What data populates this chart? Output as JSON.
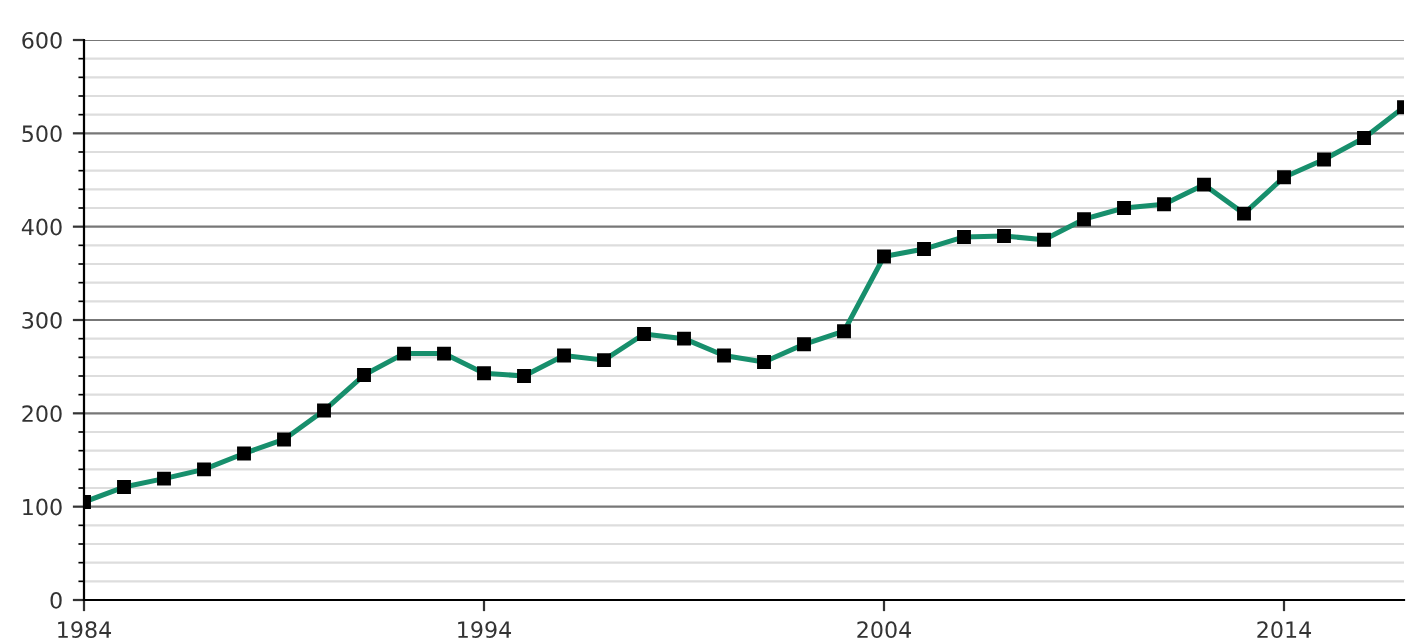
{
  "chart_data": {
    "type": "line",
    "x": [
      1984,
      1985,
      1986,
      1987,
      1988,
      1989,
      1990,
      1991,
      1992,
      1993,
      1994,
      1995,
      1996,
      1997,
      1998,
      1999,
      2000,
      2001,
      2002,
      2003,
      2004,
      2005,
      2006,
      2007,
      2008,
      2009,
      2010,
      2011,
      2012,
      2013,
      2014,
      2015,
      2016,
      2017
    ],
    "series": [
      {
        "color": "#178f6c",
        "values": [
          105,
          121,
          130,
          140,
          157,
          172,
          203,
          241,
          264,
          264,
          243,
          240,
          262,
          257,
          285,
          280,
          262,
          255,
          274,
          288,
          368,
          376,
          389,
          390,
          386,
          408,
          420,
          424,
          445,
          414,
          453,
          472,
          495,
          528
        ]
      }
    ],
    "xlim": [
      1984,
      2017
    ],
    "xticks": [
      1984,
      1994,
      2004,
      2014
    ],
    "ylim": [
      0,
      600
    ],
    "yticks": [
      0,
      {
        "value": 20,
        "label": null
      },
      {
        "value": 40,
        "label": null
      },
      {
        "value": 60,
        "label": null
      },
      {
        "value": 80,
        "label": null
      },
      100,
      {
        "value": 120,
        "label": null
      },
      {
        "value": 140,
        "label": null
      },
      {
        "value": 160,
        "label": null
      },
      {
        "value": 180,
        "label": null
      },
      200,
      {
        "value": 220,
        "label": null
      },
      {
        "value": 240,
        "label": null
      },
      {
        "value": 260,
        "label": null
      },
      {
        "value": 280,
        "label": null
      },
      300,
      {
        "value": 320,
        "label": null
      },
      {
        "value": 340,
        "label": null
      },
      {
        "value": 360,
        "label": null
      },
      {
        "value": 380,
        "label": null
      },
      400,
      {
        "value": 420,
        "label": null
      },
      {
        "value": 440,
        "label": null
      },
      {
        "value": 460,
        "label": null
      },
      {
        "value": 480,
        "label": null
      },
      500,
      {
        "value": 520,
        "label": null
      },
      {
        "value": 540,
        "label": null
      },
      {
        "value": 560,
        "label": null
      },
      {
        "value": 580,
        "label": null
      },
      600
    ],
    "grid": "y",
    "marker": "square",
    "line_style": "solid"
  }
}
